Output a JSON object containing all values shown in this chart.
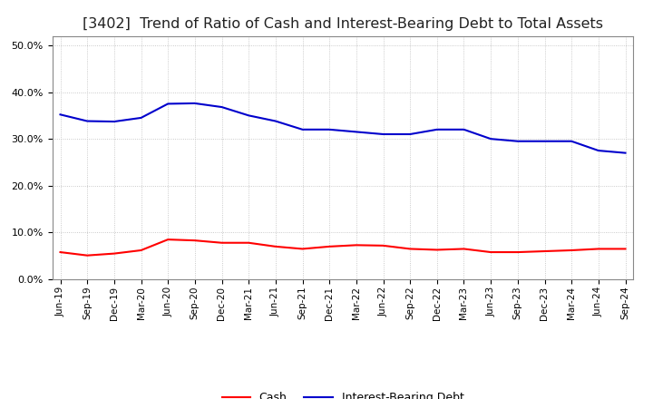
{
  "title": "[3402]  Trend of Ratio of Cash and Interest-Bearing Debt to Total Assets",
  "x_labels": [
    "Jun-19",
    "Sep-19",
    "Dec-19",
    "Mar-20",
    "Jun-20",
    "Sep-20",
    "Dec-20",
    "Mar-21",
    "Jun-21",
    "Sep-21",
    "Dec-21",
    "Mar-22",
    "Jun-22",
    "Sep-22",
    "Dec-22",
    "Mar-23",
    "Jun-23",
    "Sep-23",
    "Dec-23",
    "Mar-24",
    "Jun-24",
    "Sep-24"
  ],
  "cash": [
    5.8,
    5.1,
    5.5,
    6.2,
    8.5,
    8.3,
    7.8,
    7.8,
    7.0,
    6.5,
    7.0,
    7.3,
    7.2,
    6.5,
    6.3,
    6.5,
    5.8,
    5.8,
    6.0,
    6.2,
    6.5,
    6.5
  ],
  "ibd": [
    35.2,
    33.8,
    33.7,
    34.5,
    37.5,
    37.6,
    36.8,
    35.0,
    33.8,
    32.0,
    32.0,
    31.5,
    31.0,
    31.0,
    32.0,
    32.0,
    30.0,
    29.5,
    29.5,
    29.5,
    27.5,
    27.0
  ],
  "cash_color": "#ff0000",
  "ibd_color": "#0000cc",
  "background_color": "#ffffff",
  "grid_color": "#bbbbbb",
  "ylim": [
    0,
    52
  ],
  "yticks": [
    0,
    10,
    20,
    30,
    40,
    50
  ],
  "title_fontsize": 11.5,
  "legend_cash": "Cash",
  "legend_ibd": "Interest-Bearing Debt"
}
